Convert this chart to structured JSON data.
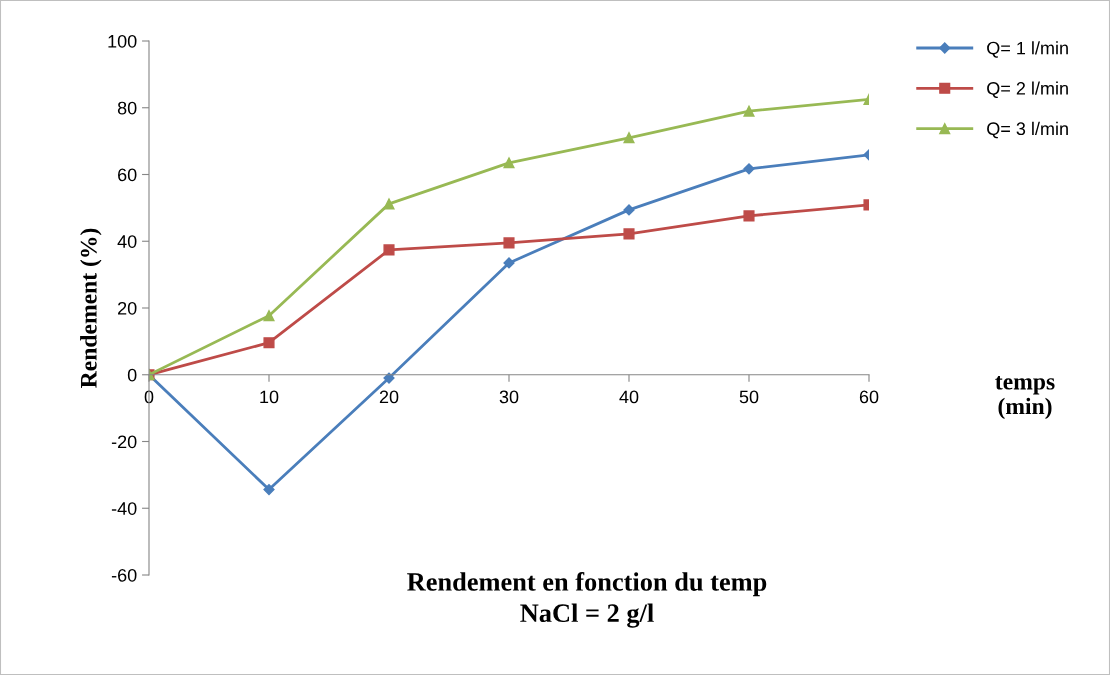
{
  "chart_data": {
    "type": "line",
    "title": "Rendement en fonction du temp\nNaCl = 2 g/l",
    "xlabel": "temps\n(min)",
    "ylabel": "Rendement (%)",
    "x": [
      0,
      10,
      20,
      30,
      40,
      50,
      60
    ],
    "series": [
      {
        "name": "Q= 1 l/min",
        "color": "#4a7ebb",
        "marker": "diamond",
        "values": [
          0,
          -34.4,
          -1,
          33.5,
          49.4,
          61.7,
          65.9
        ]
      },
      {
        "name": "Q= 2 l/min",
        "color": "#be4b48",
        "marker": "square",
        "values": [
          0,
          9.6,
          37.4,
          39.5,
          42.2,
          47.6,
          50.9
        ]
      },
      {
        "name": "Q= 3 l/min",
        "color": "#98b954",
        "marker": "triangle",
        "values": [
          0,
          17.7,
          51.2,
          63.5,
          71,
          79,
          82.5
        ]
      }
    ],
    "xlim": [
      0,
      60
    ],
    "xticks": [
      0,
      10,
      20,
      30,
      40,
      50,
      60
    ],
    "ylim": [
      -60,
      100
    ],
    "yticks": [
      -60,
      -40,
      -20,
      0,
      20,
      40,
      60,
      80,
      100
    ],
    "grid": false,
    "legend": "top right",
    "line_style": "solid"
  }
}
